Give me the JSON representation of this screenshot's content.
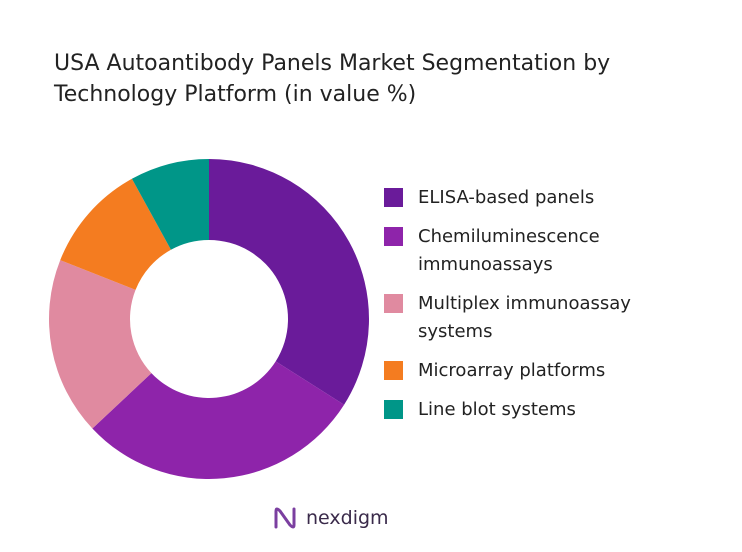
{
  "chart_data": {
    "type": "donut",
    "title": "USA Autoantibody Panels Market Segmentation by Technology Platform (in value %)",
    "categories": [
      "ELISA-based panels",
      "Chemiluminescence immunoassays",
      "Multiplex immunoassay systems",
      "Microarray platforms",
      "Line blot systems"
    ],
    "values": [
      34,
      29,
      18,
      11,
      8
    ],
    "colors": [
      "#6a1b9a",
      "#8e24aa",
      "#e08aa0",
      "#f47c20",
      "#009688"
    ],
    "legend": "right"
  },
  "logo": "nexdigm"
}
